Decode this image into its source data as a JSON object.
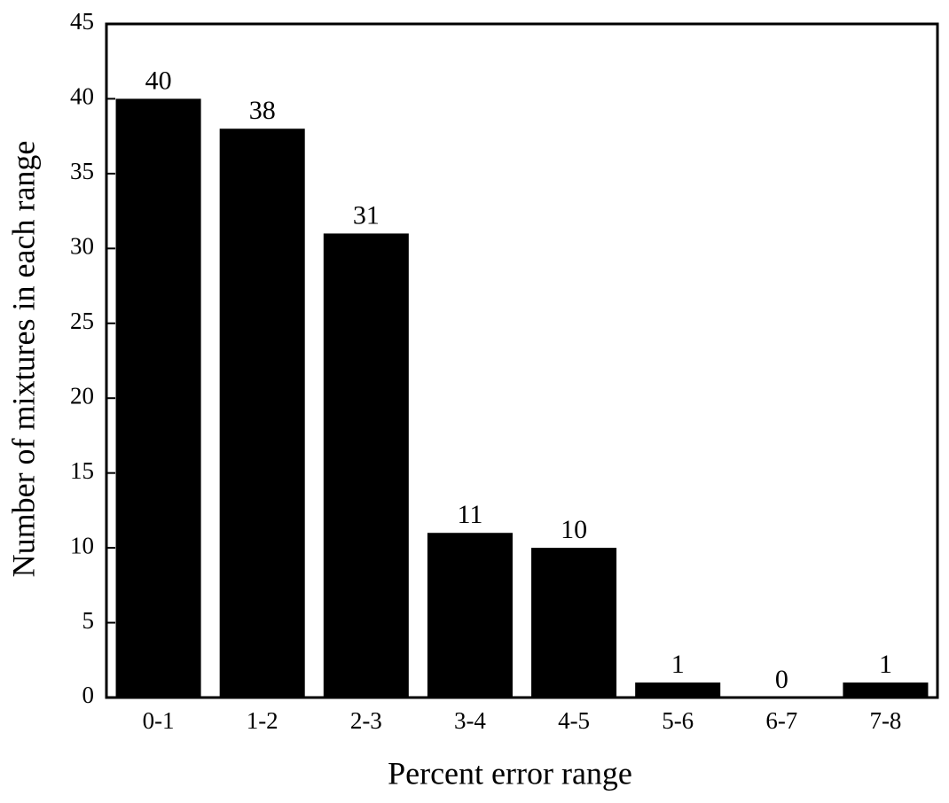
{
  "chart_data": {
    "type": "bar",
    "x_label": "Percent error range",
    "y_label": "Number of mixtures in each range",
    "categories": [
      "0-1",
      "1-2",
      "2-3",
      "3-4",
      "4-5",
      "5-6",
      "6-7",
      "7-8"
    ],
    "values": [
      40,
      38,
      31,
      11,
      10,
      1,
      0,
      1
    ],
    "color": "#000000",
    "ylim": [
      0,
      45
    ],
    "yticks": [
      0,
      5,
      10,
      15,
      20,
      25,
      30,
      35,
      40,
      45
    ],
    "grid": false
  }
}
